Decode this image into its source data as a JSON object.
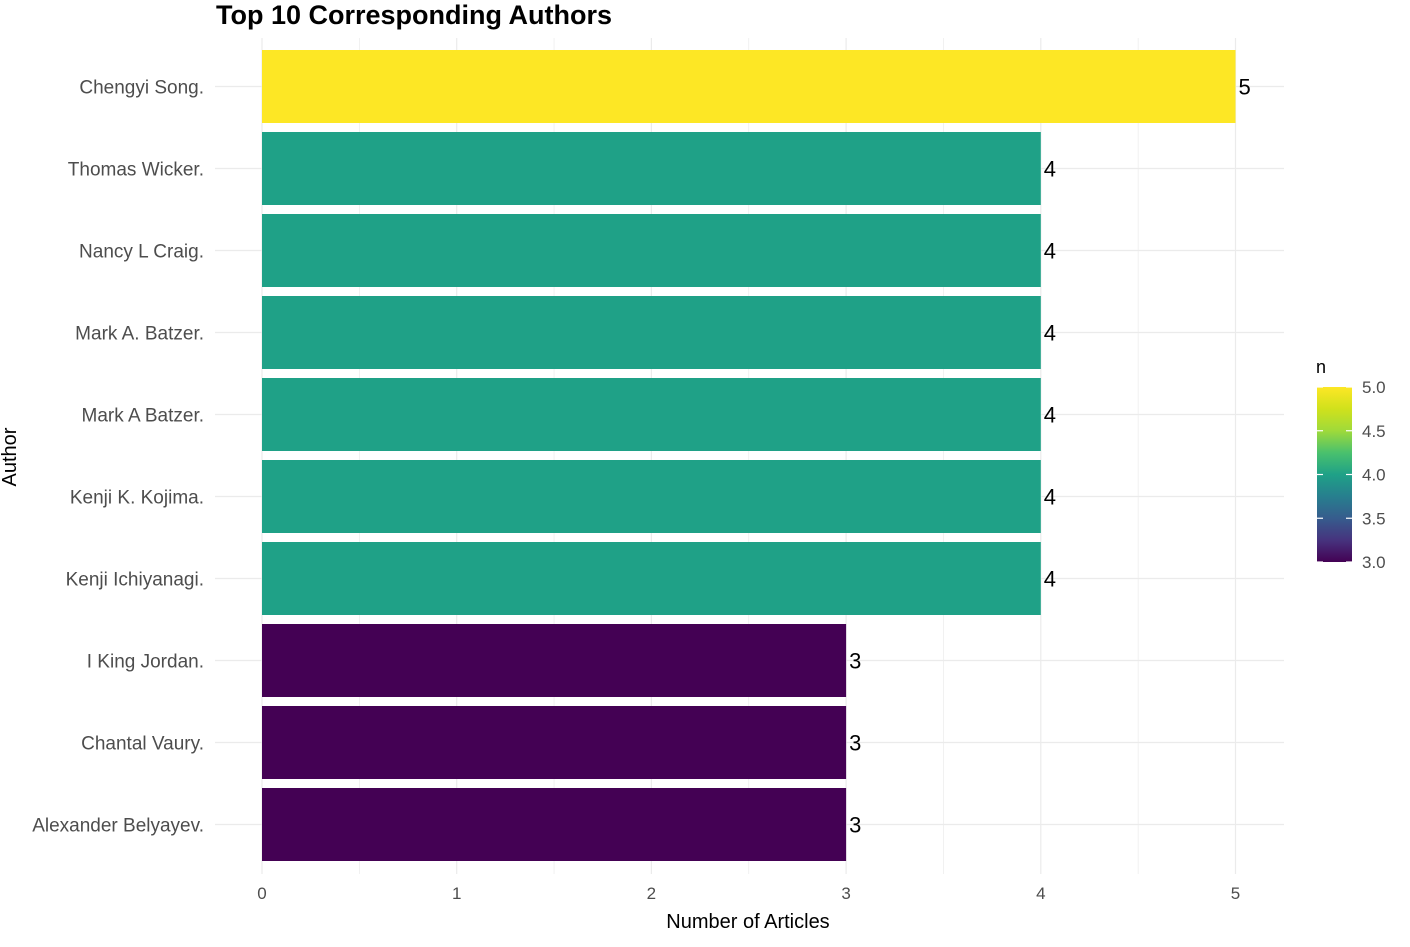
{
  "chart_data": {
    "type": "bar",
    "orientation": "horizontal",
    "title": "Top 10 Corresponding Authors",
    "xlabel": "Number of Articles",
    "ylabel": "Author",
    "categories": [
      "Chengyi Song.",
      "Thomas Wicker.",
      "Nancy L Craig.",
      "Mark A. Batzer.",
      "Mark A Batzer.",
      "Kenji K. Kojima.",
      "Kenji Ichiyanagi.",
      "I King Jordan.",
      "Chantal Vaury.",
      "Alexander Belyayev."
    ],
    "values": [
      5,
      4,
      4,
      4,
      4,
      4,
      4,
      3,
      3,
      3
    ],
    "data_labels": [
      "5",
      "4",
      "4",
      "4",
      "4",
      "4",
      "4",
      "3",
      "3",
      "3"
    ],
    "x_ticks": [
      "0",
      "1",
      "2",
      "3",
      "4",
      "5"
    ],
    "xlim": [
      0,
      5.25
    ],
    "grid": true,
    "legend": {
      "title": "n",
      "position": "right",
      "type": "colorbar",
      "range": [
        3.0,
        5.0
      ],
      "ticks": [
        "5.0",
        "4.5",
        "4.0",
        "3.5",
        "3.0"
      ],
      "palette": "viridis"
    },
    "colors": {
      "high": "#FDE725",
      "mid": "#21908C",
      "low": "#440154",
      "grid": "#EBEBEB",
      "axis_text": "#4D4D4D",
      "title": "#000000"
    }
  }
}
